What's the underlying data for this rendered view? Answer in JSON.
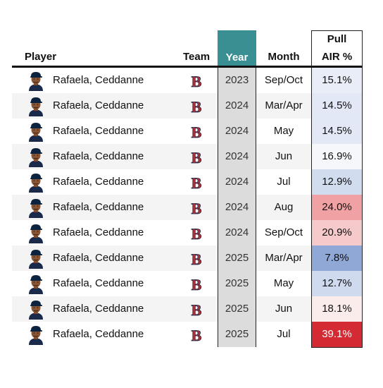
{
  "header": {
    "player": "Player",
    "team": "Team",
    "year": "Year",
    "month": "Month",
    "pull_line1": "Pull",
    "pull_line2": "AIR %"
  },
  "rows": [
    {
      "player": "Rafaela, Ceddanne",
      "team_icon": "red-sox-b-logo-icon",
      "year": "2023",
      "month": "Sep/Oct",
      "pull": "15.1%",
      "color": "#e8edf7"
    },
    {
      "player": "Rafaela, Ceddanne",
      "team_icon": "red-sox-b-logo-icon",
      "year": "2024",
      "month": "Mar/Apr",
      "pull": "14.5%",
      "color": "#e2e8f5"
    },
    {
      "player": "Rafaela, Ceddanne",
      "team_icon": "red-sox-b-logo-icon",
      "year": "2024",
      "month": "May",
      "pull": "14.5%",
      "color": "#e2e8f5"
    },
    {
      "player": "Rafaela, Ceddanne",
      "team_icon": "red-sox-b-logo-icon",
      "year": "2024",
      "month": "Jun",
      "pull": "16.9%",
      "color": "#f5f7fb"
    },
    {
      "player": "Rafaela, Ceddanne",
      "team_icon": "red-sox-b-logo-icon",
      "year": "2024",
      "month": "Jul",
      "pull": "12.9%",
      "color": "#d2dcef"
    },
    {
      "player": "Rafaela, Ceddanne",
      "team_icon": "red-sox-b-logo-icon",
      "year": "2024",
      "month": "Aug",
      "pull": "24.0%",
      "color": "#f0a1a3"
    },
    {
      "player": "Rafaela, Ceddanne",
      "team_icon": "red-sox-b-logo-icon",
      "year": "2024",
      "month": "Sep/Oct",
      "pull": "20.9%",
      "color": "#f6c9ca"
    },
    {
      "player": "Rafaela, Ceddanne",
      "team_icon": "red-sox-b-logo-icon",
      "year": "2025",
      "month": "Mar/Apr",
      "pull": "7.8%",
      "color": "#8fa8d6"
    },
    {
      "player": "Rafaela, Ceddanne",
      "team_icon": "red-sox-b-logo-icon",
      "year": "2025",
      "month": "May",
      "pull": "12.7%",
      "color": "#d0daee"
    },
    {
      "player": "Rafaela, Ceddanne",
      "team_icon": "red-sox-b-logo-icon",
      "year": "2025",
      "month": "Jun",
      "pull": "18.1%",
      "color": "#fbecec"
    },
    {
      "player": "Rafaela, Ceddanne",
      "team_icon": "red-sox-b-logo-icon",
      "year": "2025",
      "month": "Jul",
      "pull": "39.1%",
      "color": "#d42a33"
    }
  ],
  "colors": {
    "year_header_bg": "#3a8f92",
    "year_column_bg": "#dcdcdc",
    "team_logo_red": "#bd3039",
    "team_logo_navy": "#0c2340"
  }
}
